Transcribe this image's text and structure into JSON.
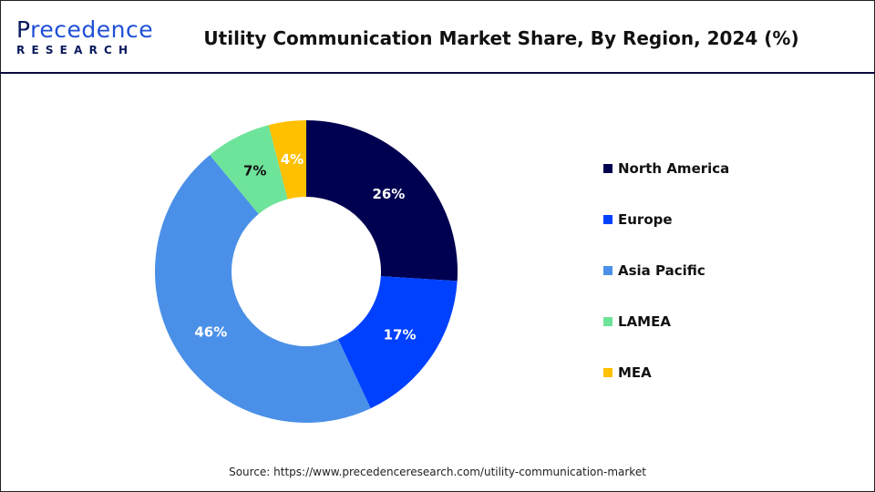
{
  "logo": {
    "brand_main_initial": "P",
    "brand_main_rest": "recedence",
    "brand_sub": "RESEARCH"
  },
  "header": {
    "title": "Utility Communication Market Share, By Region, 2024 (%)"
  },
  "chart_data": {
    "type": "pie",
    "variant": "donut",
    "title": "Utility Communication Market Share, By Region, 2024 (%)",
    "categories": [
      "North America",
      "Europe",
      "Asia Pacific",
      "LAMEA",
      "MEA"
    ],
    "values": [
      26,
      17,
      46,
      7,
      4
    ],
    "data_labels": [
      "26%",
      "17%",
      "46%",
      "7%",
      "4%"
    ],
    "colors": [
      "#000050",
      "#0041ff",
      "#4a90e8",
      "#6ee39a",
      "#ffc000"
    ],
    "label_colors": [
      "#ffffff",
      "#ffffff",
      "#ffffff",
      "#111111",
      "#ffffff"
    ],
    "start": "top",
    "direction": "clockwise",
    "legend_position": "right"
  },
  "footer": {
    "source": "Source: https://www.precedenceresearch.com/utility-communication-market"
  }
}
